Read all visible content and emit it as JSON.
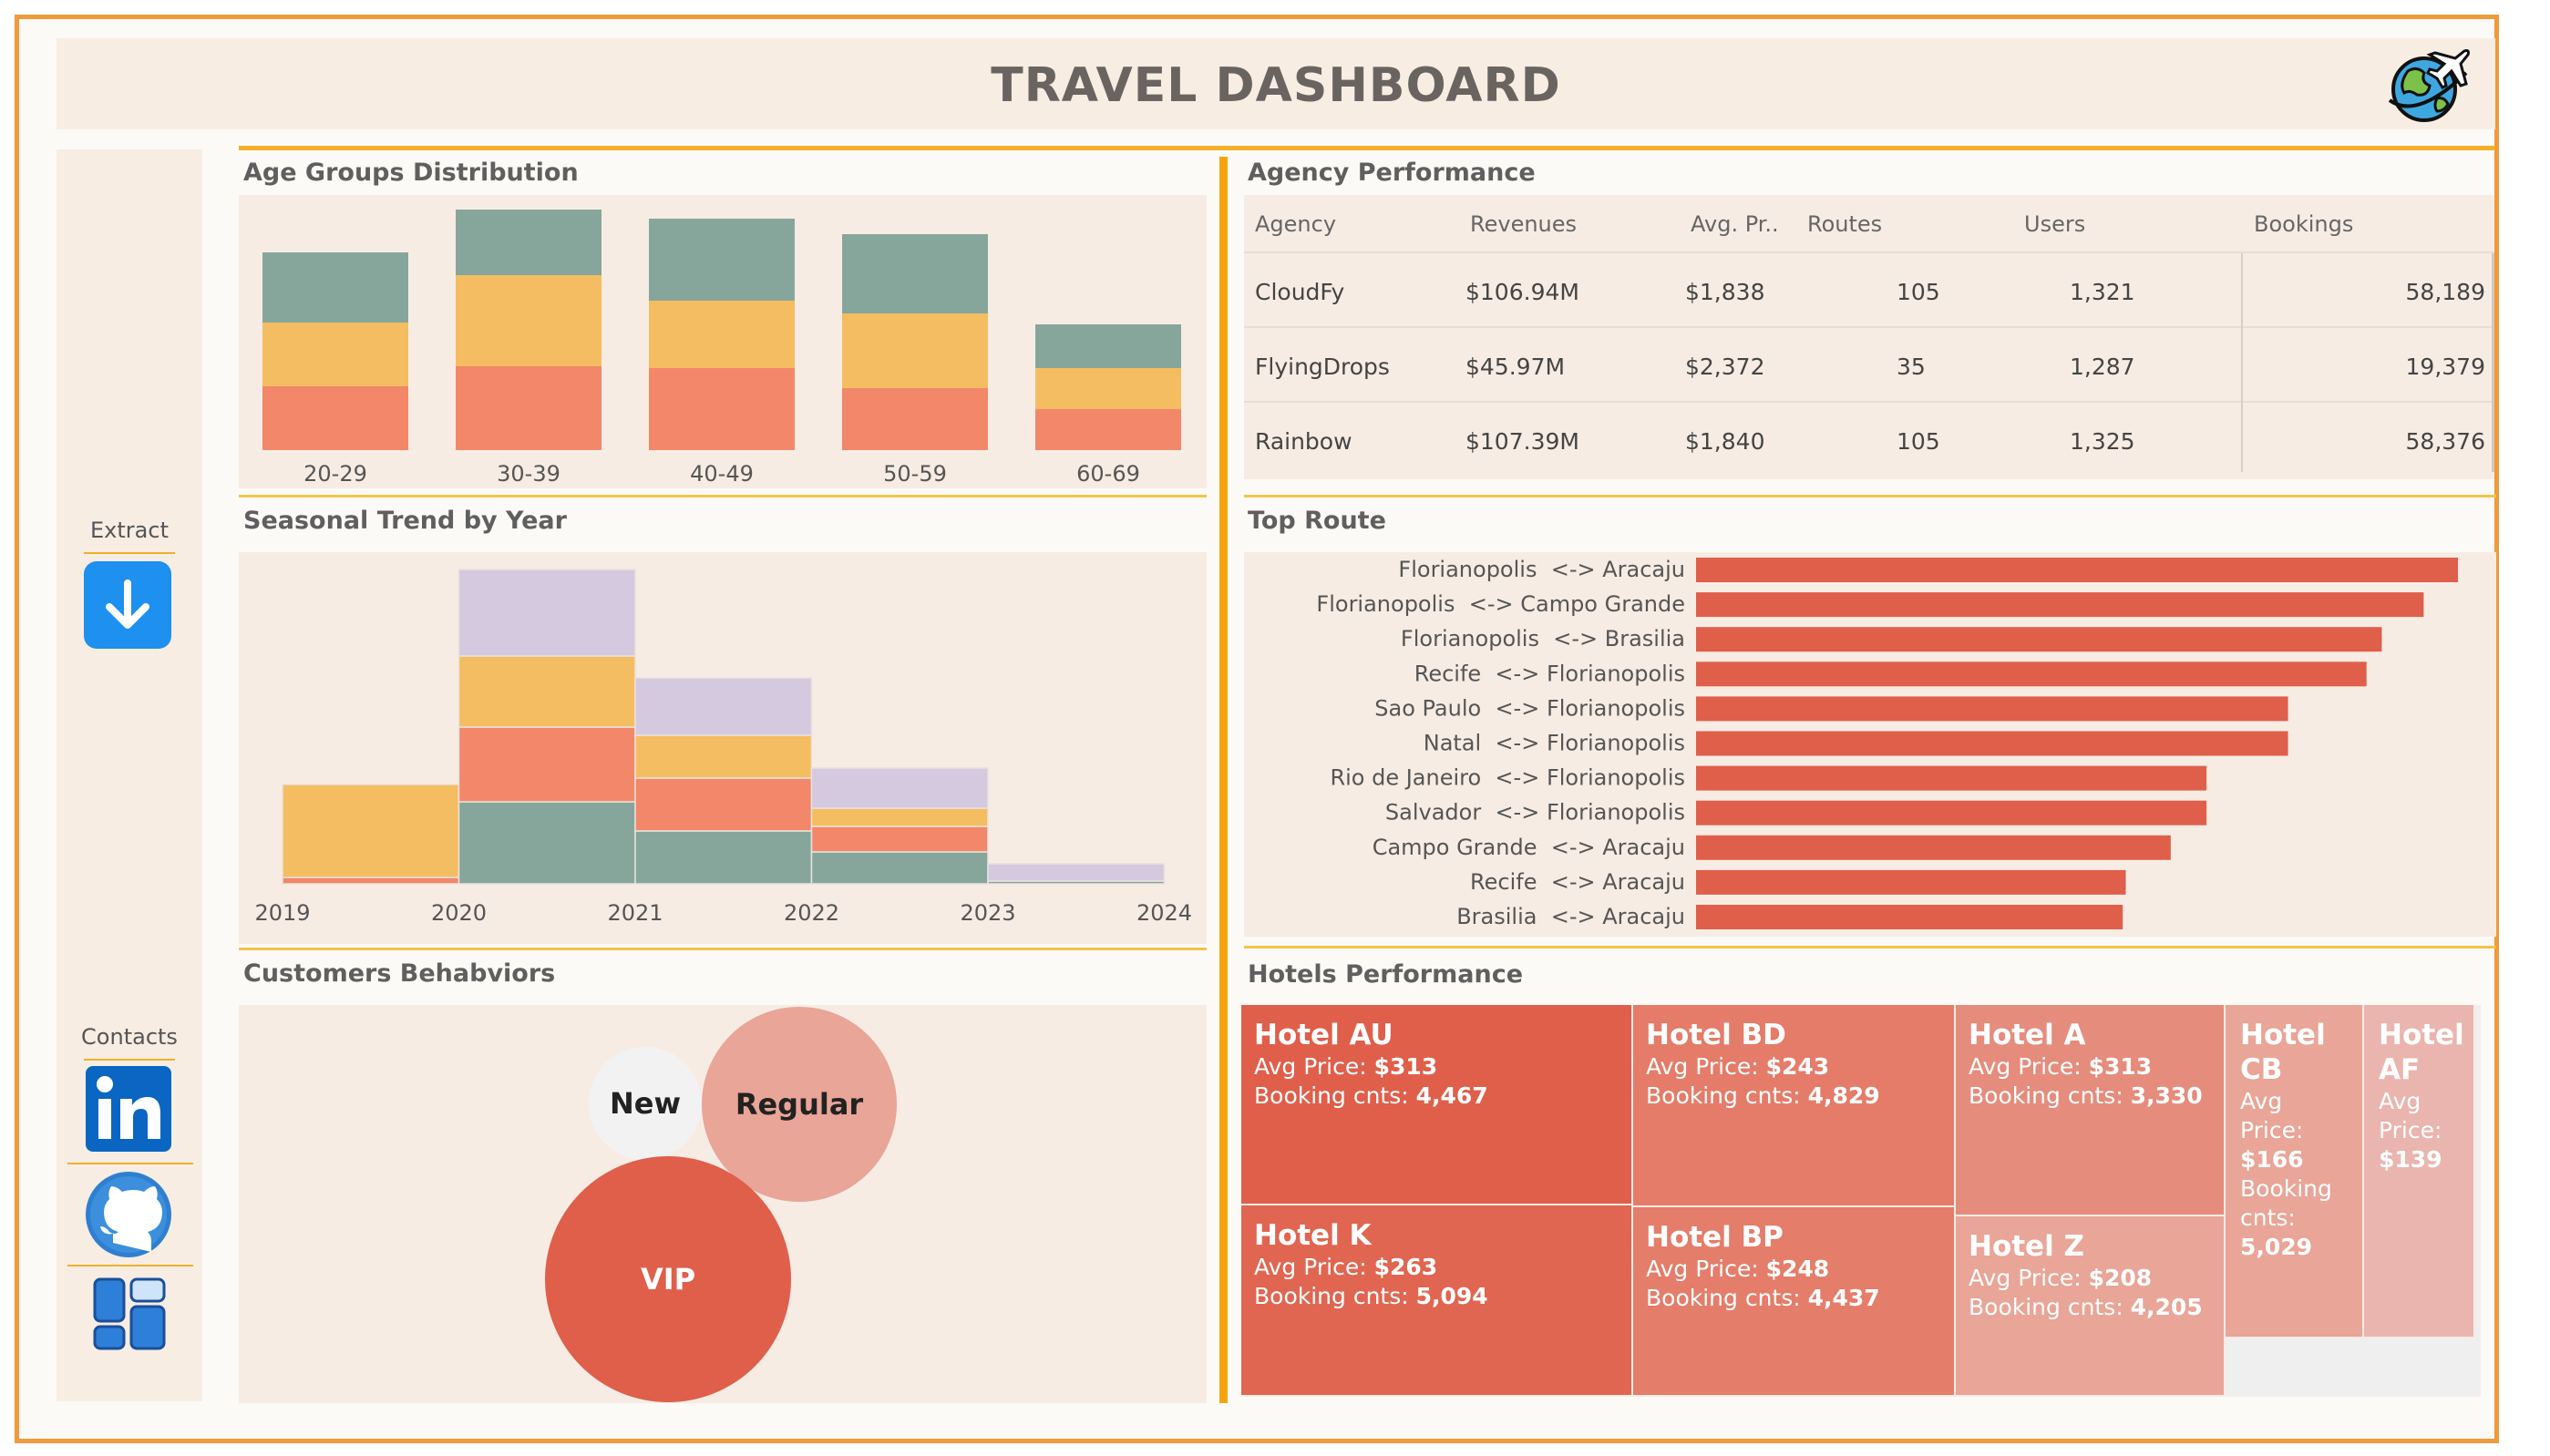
{
  "header": {
    "title": "TRAVEL DASHBOARD"
  },
  "sidebar": {
    "extract_label": "Extract",
    "contacts_label": "Contacts"
  },
  "colors": {
    "accent": "#f5a40e",
    "frame": "#ef9a3c",
    "panel_bg": "#f7ece3",
    "bar_red": "#df5f4b",
    "teal": "#86a69b",
    "yellow": "#f5bd62",
    "salmon": "#f28769",
    "lavender": "#d5c9e0"
  },
  "age": {
    "title": "Age Groups Distribution",
    "chart_data": {
      "type": "bar",
      "stacked": true,
      "categories": [
        "20-29",
        "30-39",
        "40-49",
        "50-59",
        "60-69"
      ],
      "series": [
        {
          "values": [
            70,
            92,
            90,
            68,
            45
          ],
          "color": "#f28769"
        },
        {
          "values": [
            70,
            100,
            74,
            82,
            45
          ],
          "color": "#f5bd62"
        },
        {
          "values": [
            77,
            72,
            90,
            87,
            48
          ],
          "color": "#86a69b"
        }
      ],
      "ylim": [
        0,
        270
      ]
    }
  },
  "seasonal": {
    "title": "Seasonal Trend by Year",
    "chart_data": {
      "type": "bar",
      "stacked": true,
      "x_ticks": [
        "2019",
        "2020",
        "2021",
        "2022",
        "2023",
        "2024"
      ],
      "bins": [
        [
          2019,
          2020
        ],
        [
          2020,
          2021
        ],
        [
          2021,
          2022
        ],
        [
          2022,
          2023
        ],
        [
          2023,
          2024
        ]
      ],
      "series": [
        {
          "values": [
            0,
            90,
            58,
            35,
            3
          ],
          "color": "#86a69b"
        },
        {
          "values": [
            7,
            82,
            58,
            28,
            0
          ],
          "color": "#f28769"
        },
        {
          "values": [
            102,
            78,
            47,
            20,
            0
          ],
          "color": "#f5bd62"
        },
        {
          "values": [
            0,
            95,
            63,
            44,
            19
          ],
          "color": "#d5c9e0"
        }
      ],
      "ylim": [
        0,
        360
      ]
    }
  },
  "customers": {
    "title": "Customers Behabviors",
    "bubbles": [
      {
        "label": "New",
        "color": "#f2f2f2",
        "text_color": "#222"
      },
      {
        "label": "Regular",
        "color": "#e9a597",
        "text_color": "#222"
      },
      {
        "label": "VIP",
        "color": "#df5f4b",
        "text_color": "#fff"
      }
    ]
  },
  "agency": {
    "title": "Agency Performance",
    "headers": [
      "Agency",
      "Revenues",
      "Avg. Pr..",
      "Routes",
      "Users",
      "Bookings"
    ],
    "rows": [
      [
        "CloudFy",
        "$106.94M",
        "$1,838",
        "105",
        "1,321",
        "58,189"
      ],
      [
        "FlyingDrops",
        "$45.97M",
        "$2,372",
        "35",
        "1,287",
        "19,379"
      ],
      [
        "Rainbow",
        "$107.39M",
        "$1,840",
        "105",
        "1,325",
        "58,376"
      ]
    ]
  },
  "routes": {
    "title": "Top Route",
    "chart_data": {
      "type": "bar",
      "orientation": "horizontal",
      "categories": [
        "Florianopolis  <-> Aracaju",
        "Florianopolis  <-> Campo Grande",
        "Florianopolis  <-> Brasilia",
        "Recife  <-> Florianopolis",
        "Sao Paulo  <-> Florianopolis",
        "Natal  <-> Florianopolis",
        "Rio de Janeiro  <-> Florianopolis",
        "Salvador  <-> Florianopolis",
        "Campo Grande  <-> Aracaju",
        "Recife  <-> Aracaju",
        "Brasilia  <-> Aracaju"
      ],
      "values": [
        100,
        95.5,
        90,
        88,
        77.7,
        77.7,
        67,
        67,
        62.3,
        56.4,
        56
      ],
      "xlim": [
        0,
        100
      ]
    }
  },
  "hotels": {
    "title": "Hotels Performance",
    "price_label": "Avg Price: ",
    "bookings_label": "Booking cnts: ",
    "tiles": [
      {
        "name": "Hotel AU",
        "price": "$313",
        "bookings": "4,467",
        "color": "#df5f4b"
      },
      {
        "name": "Hotel K",
        "price": "$263",
        "bookings": "5,094",
        "color": "#e06651"
      },
      {
        "name": "Hotel BD",
        "price": "$243",
        "bookings": "4,829",
        "color": "#e47c69"
      },
      {
        "name": "Hotel BP",
        "price": "$248",
        "bookings": "4,437",
        "color": "#e47d6a"
      },
      {
        "name": "Hotel A",
        "price": "$313",
        "bookings": "3,330",
        "color": "#e58c7d"
      },
      {
        "name": "Hotel Z",
        "price": "$208",
        "bookings": "4,205",
        "color": "#e9a597"
      },
      {
        "name": "Hotel CB",
        "price": "$166",
        "bookings": "5,029",
        "color": "#e9a597"
      },
      {
        "name": "Hotel AF",
        "price": "$139",
        "bookings": "",
        "color": "#eab5ae"
      }
    ]
  }
}
